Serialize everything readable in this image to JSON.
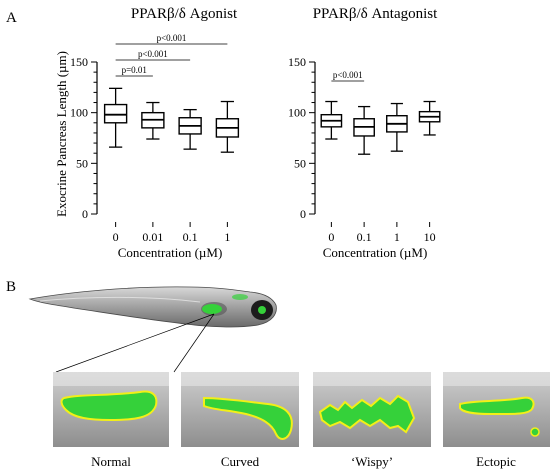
{
  "panel_labels": {
    "a": "A",
    "b": "B"
  },
  "chart_data": [
    {
      "type": "box",
      "title": "PPARβ/δ Agonist",
      "xlabel": "Concentration (µM)",
      "ylabel": "Exocrine Pancreas Length (µm)",
      "ylim": [
        0,
        150
      ],
      "yticks": [
        "0",
        "50",
        "100",
        "150"
      ],
      "categories": [
        "0",
        "0.01",
        "0.1",
        "1"
      ],
      "boxes": [
        {
          "min": 66,
          "q1": 90,
          "median": 98,
          "q3": 108,
          "max": 124
        },
        {
          "min": 74,
          "q1": 85,
          "median": 93,
          "q3": 100,
          "max": 110
        },
        {
          "min": 64,
          "q1": 79,
          "median": 87,
          "q3": 95,
          "max": 103
        },
        {
          "min": 61,
          "q1": 76,
          "median": 85,
          "q3": 94,
          "max": 111
        }
      ],
      "significance": [
        {
          "from": "0",
          "to": "0.01",
          "label": "p=0.01"
        },
        {
          "from": "0",
          "to": "0.1",
          "label": "p<0.001"
        },
        {
          "from": "0",
          "to": "1",
          "label": "p<0.001"
        }
      ]
    },
    {
      "type": "box",
      "title": "PPARβ/δ Antagonist",
      "xlabel": "Concentration (µM)",
      "ylabel": "",
      "ylim": [
        0,
        150
      ],
      "yticks": [
        "0",
        "50",
        "100",
        "150"
      ],
      "categories": [
        "0",
        "0.1",
        "1",
        "10"
      ],
      "boxes": [
        {
          "min": 74,
          "q1": 86,
          "median": 92,
          "q3": 98,
          "max": 111
        },
        {
          "min": 59,
          "q1": 77,
          "median": 86,
          "q3": 94,
          "max": 106
        },
        {
          "min": 62,
          "q1": 81,
          "median": 89,
          "q3": 97,
          "max": 109
        },
        {
          "min": 78,
          "q1": 91,
          "median": 96,
          "q3": 101,
          "max": 111
        }
      ],
      "significance": [
        {
          "from": "0",
          "to": "0.1",
          "label": "p<0.001"
        }
      ]
    }
  ],
  "morphologies": [
    {
      "label": "Normal"
    },
    {
      "label": "Curved"
    },
    {
      "label": "‘Wispy’"
    },
    {
      "label": "Ectopic"
    }
  ],
  "colors": {
    "gfp": "#35d13a",
    "outline": "#f2ef18",
    "tissue": "#a9a9a9"
  }
}
